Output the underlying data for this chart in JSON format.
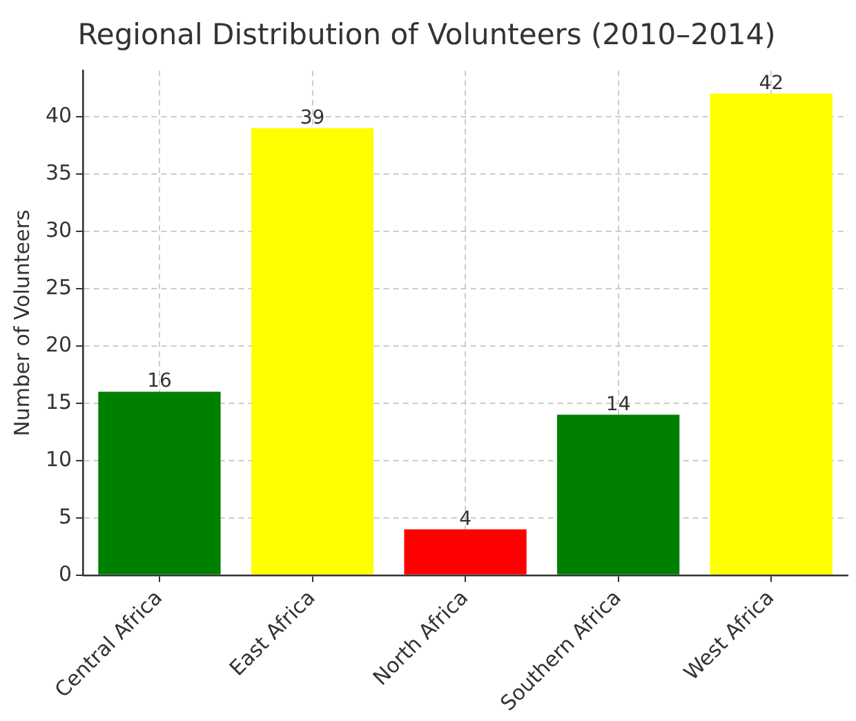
{
  "chart_data": {
    "type": "bar",
    "title": "Regional Distribution of Volunteers (2010–2014)",
    "ylabel": "Number of Volunteers",
    "categories": [
      "Central Africa",
      "East Africa",
      "North Africa",
      "Southern Africa",
      "West Africa"
    ],
    "values": [
      16,
      39,
      4,
      14,
      42
    ],
    "colors": [
      "#008000",
      "#ffff00",
      "#ff0000",
      "#008000",
      "#ffff00"
    ],
    "ylim": [
      0,
      44
    ],
    "yticks": [
      0,
      5,
      10,
      15,
      20,
      25,
      30,
      35,
      40
    ],
    "grid": true,
    "data_labels": true
  }
}
